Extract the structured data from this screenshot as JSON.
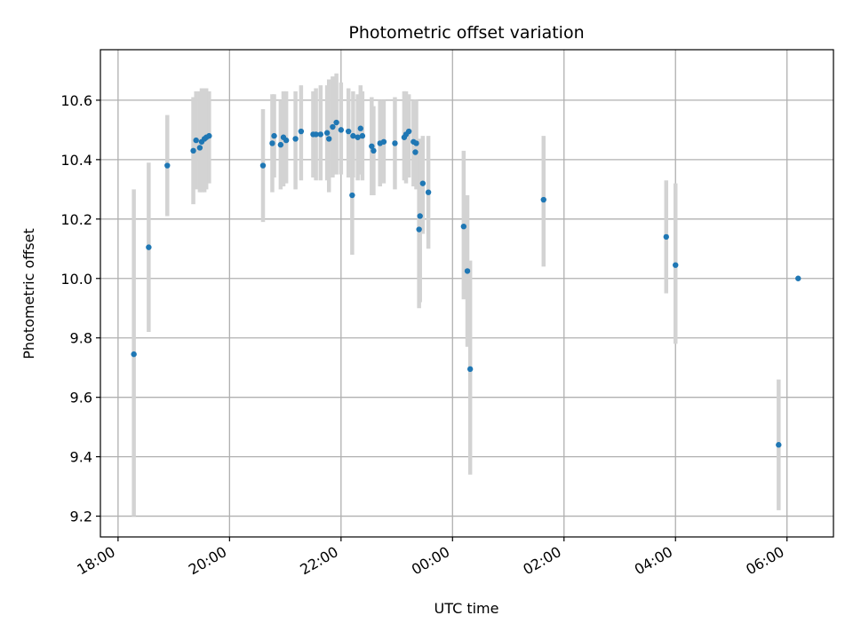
{
  "chart_data": {
    "type": "scatter",
    "title": "Photometric offset variation",
    "xlabel": "UTC time",
    "ylabel": "Photometric offset",
    "x_axis_type": "time",
    "xlim": [
      "17:41",
      "06:50"
    ],
    "ylim": [
      9.13,
      10.77
    ],
    "grid": true,
    "xticks": [
      "18:00",
      "20:00",
      "22:00",
      "00:00",
      "02:00",
      "04:00",
      "06:00"
    ],
    "yticks": [
      9.2,
      9.4,
      9.6,
      9.8,
      10.0,
      10.2,
      10.4,
      10.6
    ],
    "colors": {
      "point": "#1f77b4",
      "errorbar": "#d3d3d3",
      "grid": "#b0b0b0"
    },
    "series": [
      {
        "x": [
          "18:17",
          "18:33",
          "18:53",
          "19:21",
          "19:24",
          "19:28",
          "19:30",
          "19:33",
          "19:35",
          "19:38",
          "22:12",
          "20:36",
          "20:46",
          "20:48",
          "20:55",
          "20:58",
          "21:01",
          "21:11",
          "21:17",
          "21:30",
          "21:33",
          "21:38",
          "21:45",
          "21:47",
          "21:51",
          "21:55",
          "22:00",
          "22:08",
          "22:13",
          "22:18",
          "22:21",
          "22:23",
          "22:33",
          "22:35",
          "22:42",
          "22:46",
          "22:58",
          "23:08",
          "23:10",
          "23:13",
          "23:18",
          "23:20",
          "23:21",
          "23:24",
          "23:25",
          "23:28",
          "23:34",
          "00:12",
          "00:16",
          "00:19",
          "01:38",
          "03:50",
          "04:00",
          "05:51",
          "06:12"
        ],
        "y": [
          9.745,
          10.105,
          10.38,
          10.43,
          10.465,
          10.44,
          10.46,
          10.47,
          10.475,
          10.48,
          10.28,
          10.38,
          10.455,
          10.48,
          10.45,
          10.475,
          10.465,
          10.47,
          10.495,
          10.485,
          10.485,
          10.485,
          10.49,
          10.47,
          10.51,
          10.525,
          10.5,
          10.495,
          10.48,
          10.475,
          10.505,
          10.48,
          10.445,
          10.43,
          10.455,
          10.46,
          10.455,
          10.475,
          10.485,
          10.495,
          10.46,
          10.425,
          10.455,
          10.165,
          10.21,
          10.32,
          10.29,
          10.175,
          10.025,
          9.695,
          10.265,
          10.14,
          10.045,
          9.44,
          10.0
        ],
        "yerr_low": [
          9.2,
          9.82,
          10.21,
          10.25,
          10.3,
          10.29,
          10.29,
          10.29,
          10.3,
          10.32,
          10.08,
          10.19,
          10.29,
          10.34,
          10.3,
          10.31,
          10.32,
          10.3,
          10.33,
          10.34,
          10.33,
          10.33,
          10.33,
          10.29,
          10.34,
          10.35,
          10.35,
          10.34,
          10.34,
          10.33,
          10.35,
          10.33,
          10.28,
          10.28,
          10.31,
          10.32,
          10.3,
          10.33,
          10.32,
          10.34,
          10.31,
          10.31,
          10.3,
          9.9,
          9.92,
          10.15,
          10.1,
          9.93,
          9.77,
          9.34,
          10.04,
          9.95,
          9.78,
          9.22,
          10.0
        ],
        "yerr_high": [
          10.3,
          10.39,
          10.55,
          10.61,
          10.63,
          10.63,
          10.64,
          10.64,
          10.64,
          10.63,
          10.48,
          10.57,
          10.62,
          10.62,
          10.6,
          10.63,
          10.63,
          10.63,
          10.65,
          10.63,
          10.64,
          10.65,
          10.65,
          10.67,
          10.68,
          10.69,
          10.66,
          10.64,
          10.63,
          10.62,
          10.65,
          10.63,
          10.61,
          10.58,
          10.6,
          10.6,
          10.61,
          10.63,
          10.63,
          10.62,
          10.6,
          10.6,
          10.6,
          10.44,
          10.47,
          10.48,
          10.48,
          10.43,
          10.28,
          10.06,
          10.48,
          10.33,
          10.32,
          9.66,
          10.0
        ]
      }
    ]
  }
}
